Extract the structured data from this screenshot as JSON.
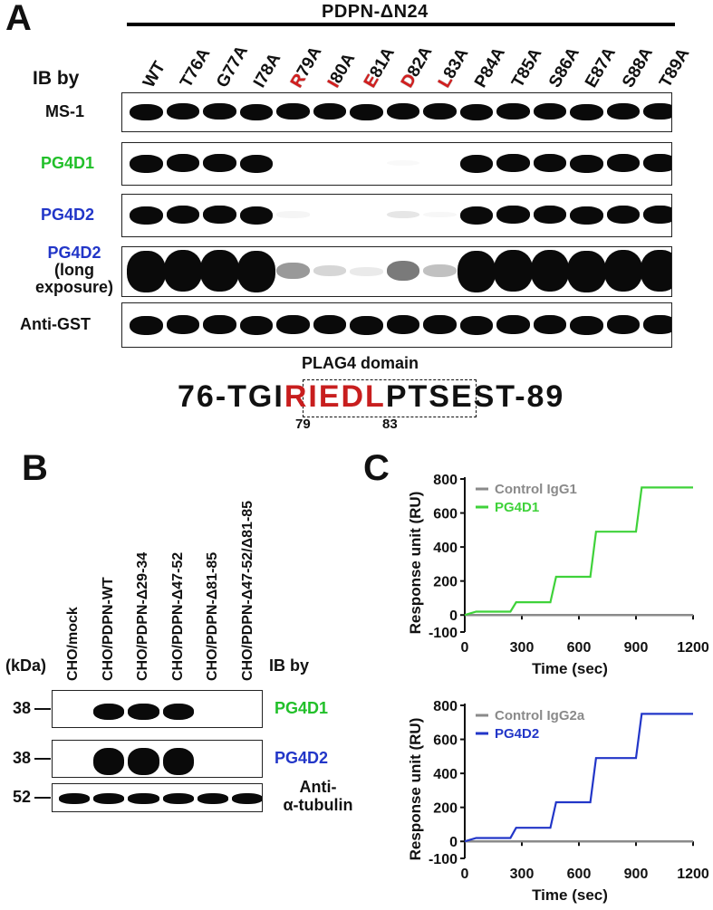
{
  "panelA": {
    "letter": "A",
    "construct_title": "PDPN-ΔN24",
    "ib_by": "IB by",
    "lanes": [
      {
        "pre": "",
        "hl": "",
        "post": "WT"
      },
      {
        "pre": "",
        "hl": "",
        "post": "T76A"
      },
      {
        "pre": "",
        "hl": "",
        "post": "G77A"
      },
      {
        "pre": "",
        "hl": "",
        "post": "I78A"
      },
      {
        "pre": "",
        "hl": "R",
        "post": "79A"
      },
      {
        "pre": "",
        "hl": "I",
        "post": "80A"
      },
      {
        "pre": "",
        "hl": "E",
        "post": "81A"
      },
      {
        "pre": "",
        "hl": "D",
        "post": "82A"
      },
      {
        "pre": "",
        "hl": "L",
        "post": "83A"
      },
      {
        "pre": "",
        "hl": "",
        "post": "P84A"
      },
      {
        "pre": "",
        "hl": "",
        "post": "T85A"
      },
      {
        "pre": "",
        "hl": "",
        "post": "S86A"
      },
      {
        "pre": "",
        "hl": "",
        "post": "E87A"
      },
      {
        "pre": "",
        "hl": "",
        "post": "S88A"
      },
      {
        "pre": "",
        "hl": "",
        "post": "T89A"
      }
    ],
    "rows": [
      {
        "label": "MS-1",
        "color": "#111111",
        "intensity": [
          1,
          1,
          1,
          1,
          1,
          1,
          1,
          1,
          1,
          1,
          1,
          1,
          1,
          1,
          1
        ]
      },
      {
        "label": "PG4D1",
        "color": "#22c02a",
        "intensity": [
          1,
          1,
          1,
          1,
          0,
          0,
          0,
          0.03,
          0,
          1,
          1,
          1,
          1,
          1,
          1
        ]
      },
      {
        "label": "PG4D2",
        "color": "#2236c8",
        "intensity": [
          1,
          1,
          1,
          1,
          0.05,
          0,
          0,
          0.12,
          0.04,
          1,
          1,
          1,
          1,
          1,
          1
        ]
      },
      {
        "label_lines": [
          "PG4D2",
          "(long",
          "exposure)"
        ],
        "color": "#2236c8",
        "intensity": [
          1.4,
          1.4,
          1.4,
          1.4,
          0.5,
          0.2,
          0.1,
          0.65,
          0.3,
          1.4,
          1.4,
          1.4,
          1.4,
          1.4,
          1.4
        ]
      },
      {
        "label": "Anti-GST",
        "color": "#111111",
        "intensity": [
          1,
          1,
          1,
          1,
          1,
          1,
          1,
          1,
          1,
          1,
          1,
          1,
          1,
          1,
          1
        ]
      }
    ],
    "domain_label": "PLAG4 domain",
    "sequence": {
      "prefix": "76-TGI",
      "red1": "RI",
      "red2": "EDL",
      "mid": "PT",
      "suffix": "SEST-89"
    },
    "pos_79": "79",
    "pos_83": "83"
  },
  "panelB": {
    "letter": "B",
    "lanes": [
      "CHO/mock",
      "CHO/PDPN-WT",
      "CHO/PDPN-Δ29-34",
      "CHO/PDPN-Δ47-52",
      "CHO/PDPN-Δ81-85",
      "CHO/PDPN-Δ47-52/Δ81-85"
    ],
    "kda_label": "(kDa)",
    "ib_by": "IB by",
    "rows": [
      {
        "marker": "38",
        "label": "PG4D1",
        "color": "#22c02a",
        "intensity": [
          0,
          1,
          1,
          1,
          0,
          0
        ]
      },
      {
        "marker": "38",
        "label": "PG4D2",
        "color": "#2236c8",
        "intensity": [
          0,
          1.2,
          1.2,
          1.2,
          0,
          0
        ]
      },
      {
        "marker": "52",
        "label_lines": [
          "Anti-",
          "α-tubulin"
        ],
        "color": "#111111",
        "intensity": [
          1,
          1,
          1,
          1,
          1,
          1
        ]
      }
    ]
  },
  "panelC": {
    "letter": "C",
    "chart_data": [
      {
        "type": "line",
        "xlabel": "Time (sec)",
        "ylabel": "Response unit (RU)",
        "xlim": [
          0,
          1200
        ],
        "ylim": [
          -100,
          800
        ],
        "xticks": [
          0,
          300,
          600,
          900,
          1200
        ],
        "yticks": [
          -100,
          0,
          200,
          400,
          600,
          800
        ],
        "series": [
          {
            "name": "Control IgG1",
            "color": "#8a8a8a",
            "x": [
              0,
              1200
            ],
            "y": [
              0,
              0
            ]
          },
          {
            "name": "PG4D1",
            "color": "#3fd23a",
            "x": [
              0,
              60,
              240,
              270,
              450,
              480,
              660,
              690,
              900,
              930,
              1200
            ],
            "y": [
              0,
              20,
              20,
              75,
              75,
              225,
              225,
              490,
              490,
              750,
              750
            ]
          }
        ]
      },
      {
        "type": "line",
        "xlabel": "Time (sec)",
        "ylabel": "Response unit (RU)",
        "xlim": [
          0,
          1200
        ],
        "ylim": [
          -100,
          800
        ],
        "xticks": [
          0,
          300,
          600,
          900,
          1200
        ],
        "yticks": [
          -100,
          0,
          200,
          400,
          600,
          800
        ],
        "series": [
          {
            "name": "Control IgG2a",
            "color": "#8a8a8a",
            "x": [
              0,
              1200
            ],
            "y": [
              0,
              0
            ]
          },
          {
            "name": "PG4D2",
            "color": "#2236c8",
            "x": [
              0,
              60,
              240,
              270,
              450,
              480,
              660,
              690,
              900,
              930,
              1200
            ],
            "y": [
              0,
              20,
              20,
              80,
              80,
              230,
              230,
              490,
              490,
              750,
              750
            ]
          }
        ]
      }
    ]
  }
}
